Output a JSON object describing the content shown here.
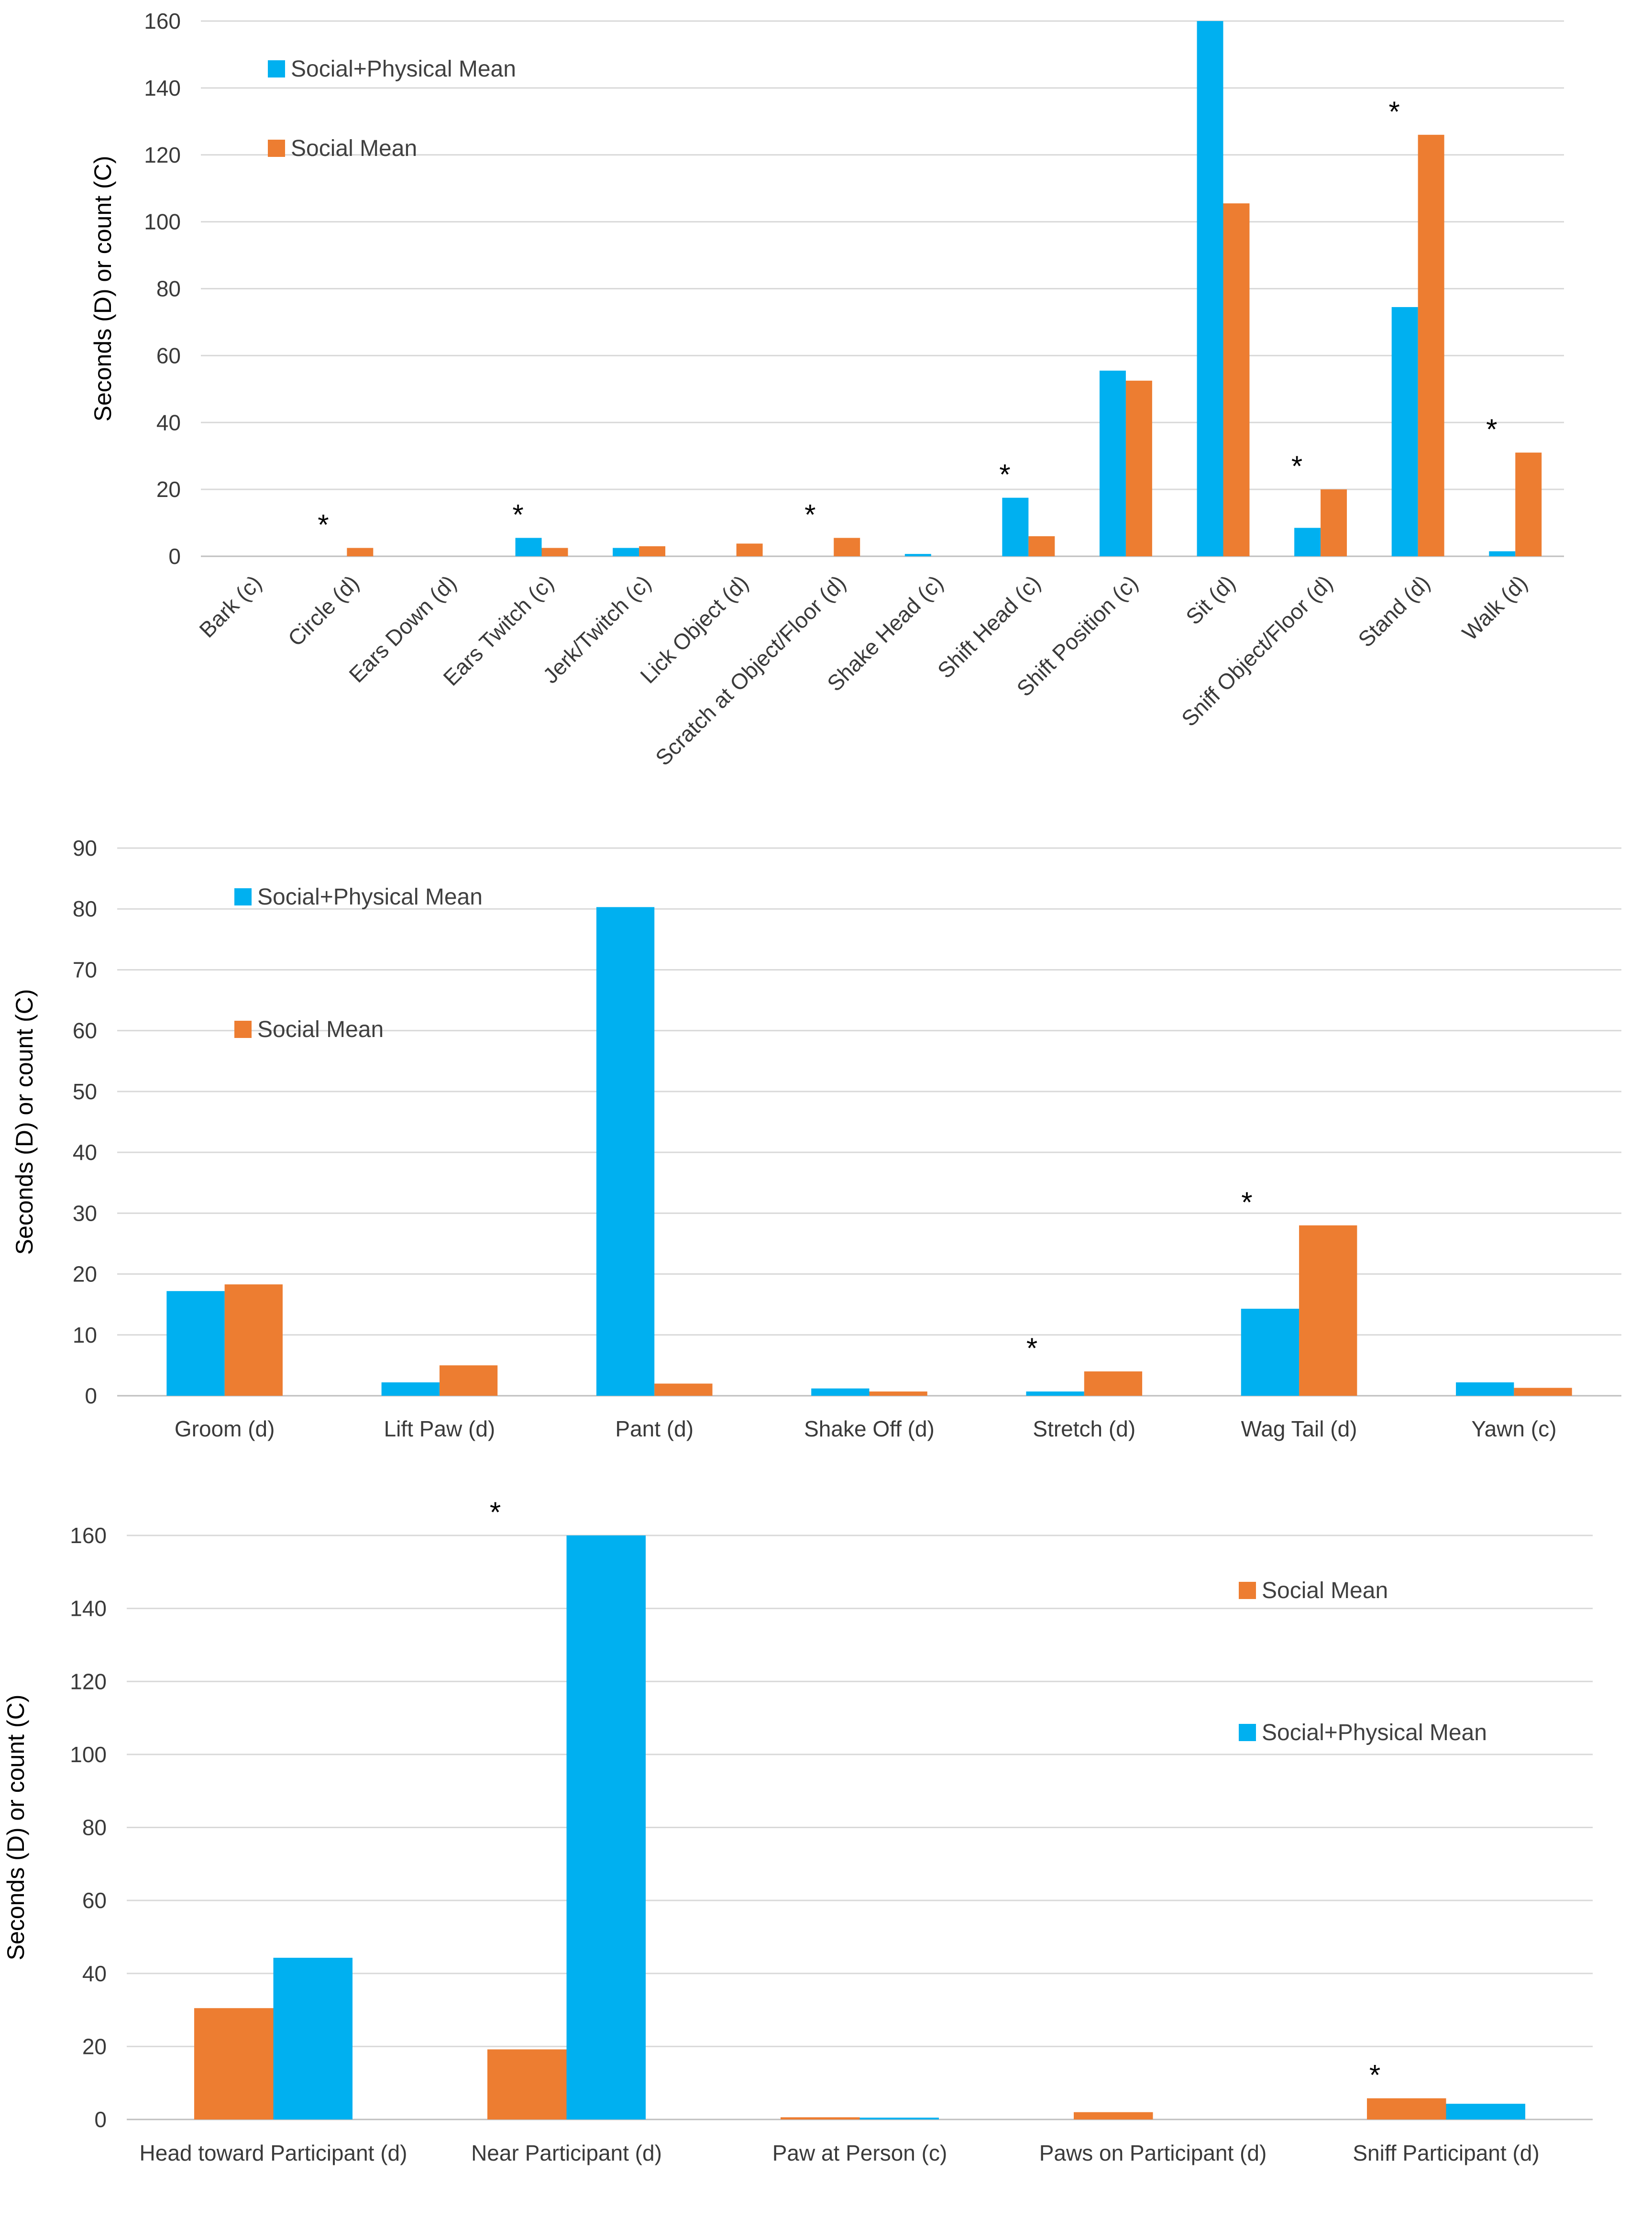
{
  "colors": {
    "social_physical": "#00B0F0",
    "social": "#ED7D31"
  },
  "chart_data": [
    {
      "type": "bar",
      "ylabel": "Seconds (D) or count (C)",
      "ylim": [
        0,
        160
      ],
      "yticks": [
        0,
        20,
        40,
        60,
        80,
        100,
        120,
        140,
        160
      ],
      "grid": true,
      "legend_position": "top-left",
      "categories": [
        "Bark (c)",
        "Circle (d)",
        "Ears Down (d)",
        "Ears Twitch (c)",
        "Jerk/Twitch (c)",
        "Lick Object (d)",
        "Scratch at Object/Floor (d)",
        "Shake Head (c)",
        "Shift Head (c)",
        "Shift Position (c)",
        "Sit (d)",
        "Sniff Object/Floor (d)",
        "Stand (d)",
        "Walk (d)"
      ],
      "series": [
        {
          "name": "Social+Physical Mean",
          "color": "social_physical",
          "values": [
            0,
            0,
            0,
            5.5,
            2.5,
            0,
            0,
            0.7,
            17.5,
            55.5,
            160,
            8.5,
            74.5,
            1.5
          ]
        },
        {
          "name": "Social Mean",
          "color": "social",
          "values": [
            0,
            2.5,
            0,
            2.5,
            3,
            3.8,
            5.5,
            0,
            6,
            52.5,
            105.5,
            20,
            126,
            31
          ]
        }
      ],
      "significant": [
        "Circle (d)",
        "Ears Twitch (c)",
        "Scratch at Object/Floor (d)",
        "Shift Head (c)",
        "Sniff Object/Floor (d)",
        "Stand (d)",
        "Walk (d)"
      ],
      "annotation_marker": "*"
    },
    {
      "type": "bar",
      "ylabel": "Seconds (D) or count (C)",
      "ylim": [
        0,
        90
      ],
      "yticks": [
        0,
        10,
        20,
        30,
        40,
        50,
        60,
        70,
        80,
        90
      ],
      "grid": true,
      "legend_position": "top-left",
      "categories": [
        "Groom (d)",
        "Lift Paw (d)",
        "Pant (d)",
        "Shake Off (d)",
        "Stretch (d)",
        "Wag Tail (d)",
        "Yawn (c)"
      ],
      "series": [
        {
          "name": "Social+Physical Mean",
          "color": "social_physical",
          "values": [
            17.2,
            2.2,
            80.3,
            1.2,
            0.7,
            14.3,
            2.2
          ]
        },
        {
          "name": "Social Mean",
          "color": "social",
          "values": [
            18.3,
            5,
            2,
            0.7,
            4,
            28,
            1.3
          ]
        }
      ],
      "significant": [
        "Stretch (d)",
        "Wag Tail (d)"
      ],
      "annotation_marker": "*"
    },
    {
      "type": "bar",
      "ylabel": "Seconds (D) or count (C)",
      "ylim": [
        0,
        160
      ],
      "yticks": [
        0,
        20,
        40,
        60,
        80,
        100,
        120,
        140,
        160
      ],
      "grid": true,
      "legend_position": "top-right",
      "categories": [
        "Head toward Participant (d)",
        "Near Participant (d)",
        "Paw at Person (c)",
        "Paws on Participant (d)",
        "Sniff Participant (d)"
      ],
      "series": [
        {
          "name": "Social Mean",
          "color": "social",
          "values": [
            30.5,
            19.2,
            0.6,
            2,
            5.8
          ]
        },
        {
          "name": "Social+Physical Mean",
          "color": "social_physical",
          "values": [
            44.3,
            160,
            0.5,
            0,
            4.3
          ]
        }
      ],
      "significant": [
        "Near Participant (d)",
        "Sniff Participant (d)"
      ],
      "annotation_marker": "*"
    }
  ]
}
